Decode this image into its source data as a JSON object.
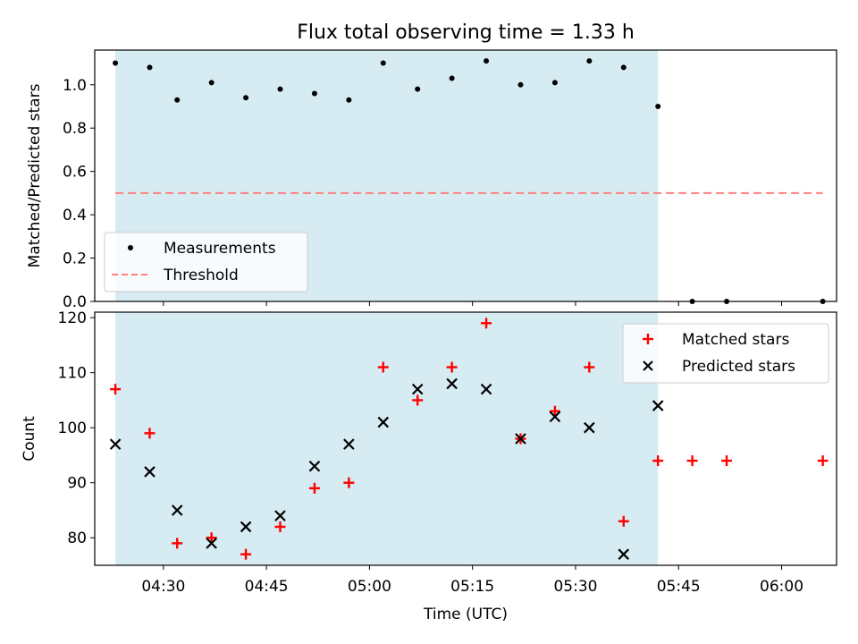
{
  "title": "Flux total observing time = 1.33 h",
  "colors": {
    "observing_span": "#add8e6",
    "measurements": "#000000",
    "threshold": "#ff7f7f",
    "matched": "#ff0000",
    "predicted": "#000000"
  },
  "chart_data": [
    {
      "type": "scatter",
      "ylabel": "Matched/Predicted stars",
      "ylim": [
        0,
        1.16
      ],
      "yticks": [
        "0.0",
        "0.2",
        "0.4",
        "0.6",
        "0.8",
        "1.0"
      ],
      "shaded_span": [
        "04:23",
        "05:42"
      ],
      "series": [
        {
          "name": "Measurements",
          "marker": "dot",
          "points": [
            [
              "04:23",
              1.1
            ],
            [
              "04:28",
              1.08
            ],
            [
              "04:32",
              0.93
            ],
            [
              "04:37",
              1.01
            ],
            [
              "04:42",
              0.94
            ],
            [
              "04:47",
              0.98
            ],
            [
              "04:52",
              0.96
            ],
            [
              "04:57",
              0.93
            ],
            [
              "05:02",
              1.1
            ],
            [
              "05:07",
              0.98
            ],
            [
              "05:12",
              1.03
            ],
            [
              "05:17",
              1.11
            ],
            [
              "05:22",
              1.0
            ],
            [
              "05:27",
              1.01
            ],
            [
              "05:32",
              1.11
            ],
            [
              "05:37",
              1.08
            ],
            [
              "05:42",
              0.9
            ],
            [
              "05:47",
              0.0
            ],
            [
              "05:52",
              0.0
            ],
            [
              "06:06",
              0.0
            ]
          ]
        },
        {
          "name": "Threshold",
          "marker": "dashed-line",
          "points": [
            [
              "04:23",
              0.5
            ],
            [
              "06:06",
              0.5
            ]
          ]
        }
      ],
      "legend": "lower-left"
    },
    {
      "type": "scatter",
      "xlabel": "Time (UTC)",
      "ylabel": "Count",
      "ylim": [
        75,
        121
      ],
      "yticks": [
        "80",
        "90",
        "100",
        "110",
        "120"
      ],
      "xticks": [
        "04:30",
        "04:45",
        "05:00",
        "05:15",
        "05:30",
        "05:45",
        "06:00"
      ],
      "shaded_span": [
        "04:23",
        "05:42"
      ],
      "series": [
        {
          "name": "Matched stars",
          "marker": "plus",
          "points": [
            [
              "04:23",
              107
            ],
            [
              "04:28",
              99
            ],
            [
              "04:32",
              79
            ],
            [
              "04:37",
              80
            ],
            [
              "04:42",
              77
            ],
            [
              "04:47",
              82
            ],
            [
              "04:52",
              89
            ],
            [
              "04:57",
              90
            ],
            [
              "05:02",
              111
            ],
            [
              "05:07",
              105
            ],
            [
              "05:12",
              111
            ],
            [
              "05:17",
              119
            ],
            [
              "05:22",
              98
            ],
            [
              "05:27",
              103
            ],
            [
              "05:32",
              111
            ],
            [
              "05:37",
              83
            ],
            [
              "05:42",
              94
            ],
            [
              "05:47",
              94
            ],
            [
              "05:52",
              94
            ],
            [
              "06:06",
              94
            ]
          ]
        },
        {
          "name": "Predicted stars",
          "marker": "x",
          "points": [
            [
              "04:23",
              97
            ],
            [
              "04:28",
              92
            ],
            [
              "04:32",
              85
            ],
            [
              "04:37",
              79
            ],
            [
              "04:42",
              82
            ],
            [
              "04:47",
              84
            ],
            [
              "04:52",
              93
            ],
            [
              "04:57",
              97
            ],
            [
              "05:02",
              101
            ],
            [
              "05:07",
              107
            ],
            [
              "05:12",
              108
            ],
            [
              "05:17",
              107
            ],
            [
              "05:22",
              98
            ],
            [
              "05:27",
              102
            ],
            [
              "05:32",
              100
            ],
            [
              "05:37",
              77
            ],
            [
              "05:42",
              104
            ]
          ]
        }
      ],
      "legend": "upper-right"
    }
  ]
}
